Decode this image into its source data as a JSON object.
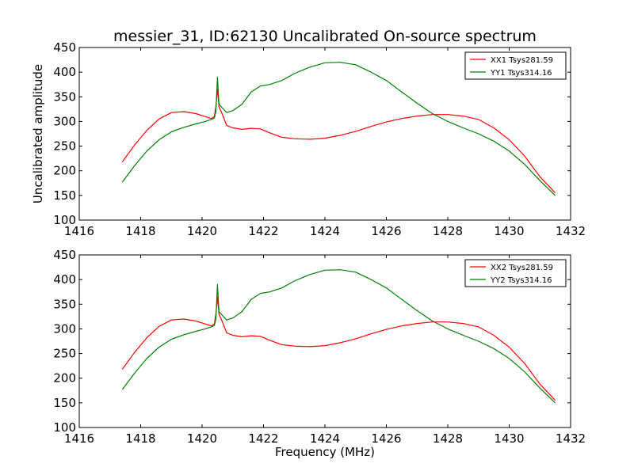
{
  "figure": {
    "title": "messier_31, ID:62130 Uncalibrated On-source spectrum",
    "ylabel": "Uncalibrated amplitude",
    "xlabel": "Frequency (MHz)"
  },
  "chart_data": [
    {
      "type": "line",
      "title": "messier_31, ID:62130 Uncalibrated On-source spectrum",
      "ylabel": "Uncalibrated amplitude",
      "xlabel": "",
      "xlim": [
        1416,
        1432
      ],
      "ylim": [
        100,
        450
      ],
      "xticks": [
        "1416",
        "1418",
        "1420",
        "1422",
        "1424",
        "1426",
        "1428",
        "1430",
        "1432"
      ],
      "yticks": [
        "100",
        "150",
        "200",
        "250",
        "300",
        "350",
        "400",
        "450"
      ],
      "grid": false,
      "legend_position": "top-right",
      "series": [
        {
          "name": "XX1 Tsys281.59",
          "color": "#ff0000",
          "x": [
            1417.4,
            1417.8,
            1418.2,
            1418.6,
            1419.0,
            1419.4,
            1419.8,
            1420.1,
            1420.3,
            1420.4,
            1420.45,
            1420.5,
            1420.55,
            1420.65,
            1420.8,
            1421.0,
            1421.3,
            1421.6,
            1421.9,
            1422.2,
            1422.6,
            1423.0,
            1423.5,
            1424.0,
            1424.5,
            1425.0,
            1425.5,
            1426.0,
            1426.5,
            1427.0,
            1427.5,
            1428.0,
            1428.5,
            1429.0,
            1429.5,
            1430.0,
            1430.5,
            1431.0,
            1431.5
          ],
          "values": [
            218,
            252,
            282,
            305,
            318,
            320,
            316,
            310,
            306,
            310,
            330,
            365,
            330,
            316,
            292,
            287,
            284,
            286,
            285,
            277,
            268,
            265,
            264,
            266,
            272,
            280,
            290,
            299,
            306,
            311,
            314,
            314,
            311,
            304,
            287,
            263,
            230,
            188,
            155
          ]
        },
        {
          "name": "YY1 Tsys314.16",
          "color": "#008000",
          "x": [
            1417.4,
            1417.8,
            1418.2,
            1418.6,
            1419.0,
            1419.4,
            1419.8,
            1420.1,
            1420.3,
            1420.4,
            1420.45,
            1420.5,
            1420.55,
            1420.65,
            1420.8,
            1421.0,
            1421.3,
            1421.6,
            1421.9,
            1422.2,
            1422.6,
            1423.0,
            1423.5,
            1424.0,
            1424.5,
            1425.0,
            1425.5,
            1426.0,
            1426.5,
            1427.0,
            1427.5,
            1428.0,
            1428.5,
            1429.0,
            1429.5,
            1430.0,
            1430.5,
            1431.0,
            1431.5
          ],
          "values": [
            177,
            210,
            240,
            263,
            279,
            288,
            295,
            300,
            304,
            307,
            320,
            390,
            335,
            328,
            318,
            322,
            335,
            360,
            372,
            375,
            383,
            397,
            410,
            419,
            420,
            415,
            400,
            383,
            360,
            337,
            316,
            300,
            287,
            275,
            260,
            240,
            213,
            180,
            150
          ]
        }
      ]
    },
    {
      "type": "line",
      "title": "",
      "ylabel": "",
      "xlabel": "Frequency (MHz)",
      "xlim": [
        1416,
        1432
      ],
      "ylim": [
        100,
        450
      ],
      "xticks": [
        "1416",
        "1418",
        "1420",
        "1422",
        "1424",
        "1426",
        "1428",
        "1430",
        "1432"
      ],
      "yticks": [
        "100",
        "150",
        "200",
        "250",
        "300",
        "350",
        "400",
        "450"
      ],
      "grid": false,
      "legend_position": "top-right",
      "series": [
        {
          "name": "XX2 Tsys281.59",
          "color": "#ff0000",
          "x": [
            1417.4,
            1417.8,
            1418.2,
            1418.6,
            1419.0,
            1419.4,
            1419.8,
            1420.1,
            1420.3,
            1420.4,
            1420.45,
            1420.5,
            1420.55,
            1420.65,
            1420.8,
            1421.0,
            1421.3,
            1421.6,
            1421.9,
            1422.2,
            1422.6,
            1423.0,
            1423.5,
            1424.0,
            1424.5,
            1425.0,
            1425.5,
            1426.0,
            1426.5,
            1427.0,
            1427.5,
            1428.0,
            1428.5,
            1429.0,
            1429.5,
            1430.0,
            1430.5,
            1431.0,
            1431.5
          ],
          "values": [
            218,
            252,
            282,
            305,
            318,
            320,
            316,
            310,
            306,
            310,
            330,
            365,
            330,
            316,
            292,
            287,
            284,
            286,
            285,
            277,
            268,
            265,
            264,
            266,
            272,
            280,
            290,
            299,
            306,
            311,
            314,
            314,
            311,
            304,
            287,
            263,
            230,
            188,
            155
          ]
        },
        {
          "name": "YY2 Tsys314.16",
          "color": "#008000",
          "x": [
            1417.4,
            1417.8,
            1418.2,
            1418.6,
            1419.0,
            1419.4,
            1419.8,
            1420.1,
            1420.3,
            1420.4,
            1420.45,
            1420.5,
            1420.55,
            1420.65,
            1420.8,
            1421.0,
            1421.3,
            1421.6,
            1421.9,
            1422.2,
            1422.6,
            1423.0,
            1423.5,
            1424.0,
            1424.5,
            1425.0,
            1425.5,
            1426.0,
            1426.5,
            1427.0,
            1427.5,
            1428.0,
            1428.5,
            1429.0,
            1429.5,
            1430.0,
            1430.5,
            1431.0,
            1431.5
          ],
          "values": [
            177,
            210,
            240,
            263,
            279,
            288,
            295,
            300,
            304,
            307,
            320,
            390,
            335,
            328,
            318,
            322,
            335,
            360,
            372,
            375,
            383,
            397,
            410,
            419,
            420,
            415,
            400,
            383,
            360,
            337,
            316,
            300,
            287,
            275,
            260,
            240,
            213,
            180,
            150
          ]
        }
      ]
    }
  ]
}
